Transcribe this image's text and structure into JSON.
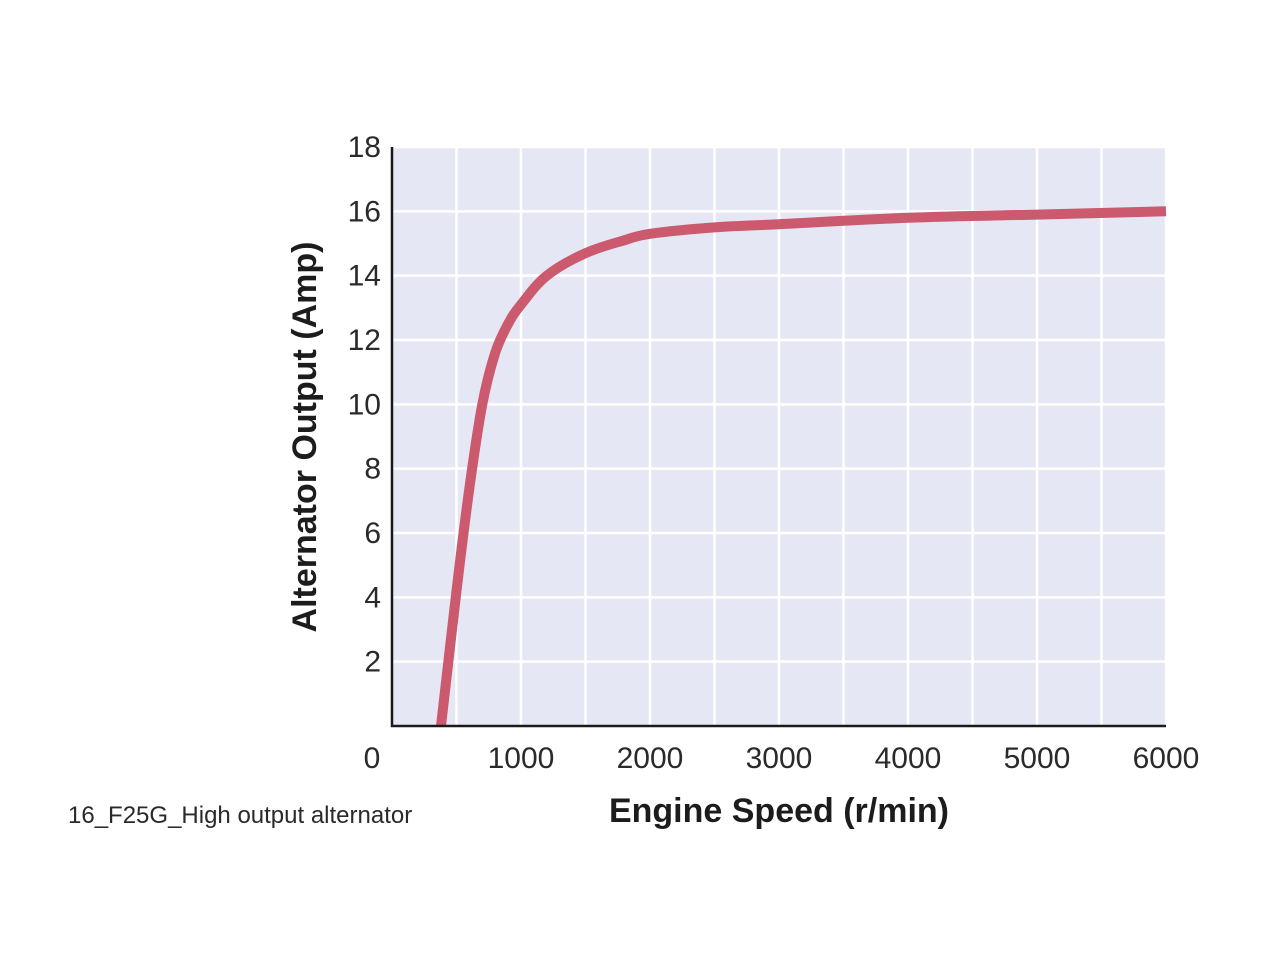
{
  "chart_data": {
    "type": "line",
    "title": "",
    "xlabel": "Engine Speed (r/min)",
    "ylabel": "Alternator Output (Amp)",
    "xlim": [
      0,
      6000
    ],
    "ylim": [
      0,
      18
    ],
    "x_ticks": [
      0,
      1000,
      2000,
      3000,
      4000,
      5000,
      6000
    ],
    "x_tick_labels": [
      "0",
      "1000",
      "2000",
      "3000",
      "4000",
      "5000",
      "6000"
    ],
    "y_ticks": [
      2,
      4,
      6,
      8,
      10,
      12,
      14,
      16,
      18
    ],
    "y_tick_labels": [
      "2",
      "4",
      "6",
      "8",
      "10",
      "12",
      "14",
      "16",
      "18"
    ],
    "grid": true,
    "grid_step": {
      "x": 500,
      "y": 2
    },
    "plot_background": "#e6e7f5",
    "grid_color": "#ffffff",
    "axis_color": "#1a1a1a",
    "line_color": "#cc5a6e",
    "series": [
      {
        "x": [
          380,
          500,
          600,
          700,
          800,
          900,
          1000,
          1200,
          1500,
          1800,
          2000,
          2500,
          3000,
          4000,
          5000,
          6000
        ],
        "y": [
          0,
          4.2,
          7.4,
          10.0,
          11.6,
          12.5,
          13.1,
          14.0,
          14.7,
          15.1,
          15.3,
          15.5,
          15.6,
          15.8,
          15.9,
          16.0
        ]
      }
    ]
  },
  "caption": "16_F25G_High output alternator"
}
